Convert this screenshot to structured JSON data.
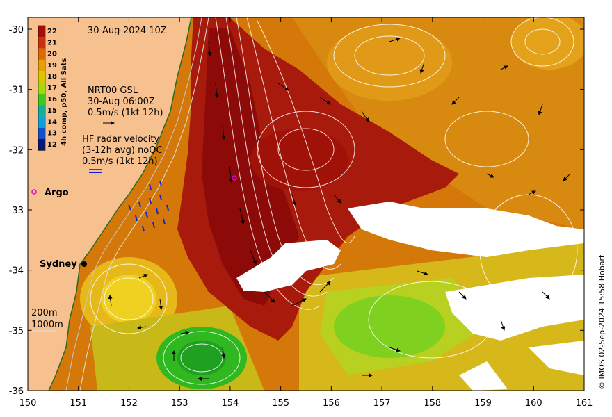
{
  "map": {
    "date_label": "30-Aug-2024 10Z",
    "current_block": {
      "line1": "NRT00 GSL",
      "line2": "30-Aug 06:00Z",
      "line3": "0.5m/s (1kt 12h)"
    },
    "radar_block": {
      "line1": "HF radar velocity",
      "line2": "(3-12h avg) noQC",
      "line3": "0.5m/s (1kt 12h)"
    },
    "argo_label": "Argo",
    "city_label": "Sydney",
    "depth_legend": {
      "line1": "200m",
      "line2": "1000m"
    },
    "credit": "© IMOS 02-Sep-2024 15:58 Hobart",
    "colorbar": {
      "title": "4h comp, p50, All Sats",
      "ticks": [
        "22",
        "21",
        "20",
        "19",
        "18",
        "17",
        "16",
        "15",
        "14",
        "13",
        "12"
      ],
      "colors": [
        "#a00f0a",
        "#c8320a",
        "#dc6a00",
        "#e8a000",
        "#d8c800",
        "#a8d810",
        "#40c820",
        "#10b0a0",
        "#10a0d8",
        "#1050c8",
        "#0a1870"
      ]
    },
    "x_axis": {
      "ticks": [
        "150",
        "151",
        "152",
        "153",
        "154",
        "155",
        "156",
        "157",
        "158",
        "159",
        "160",
        "161"
      ]
    },
    "y_axis": {
      "ticks": [
        "-30",
        "-31",
        "-32",
        "-33",
        "-34",
        "-35",
        "-36"
      ]
    },
    "colors": {
      "land": "#f7c08f",
      "warm_core": "#9a1010",
      "mid": "#c8650a",
      "cool": "#e0b015",
      "green": "#58c018",
      "cloud": "#ffffff"
    }
  }
}
